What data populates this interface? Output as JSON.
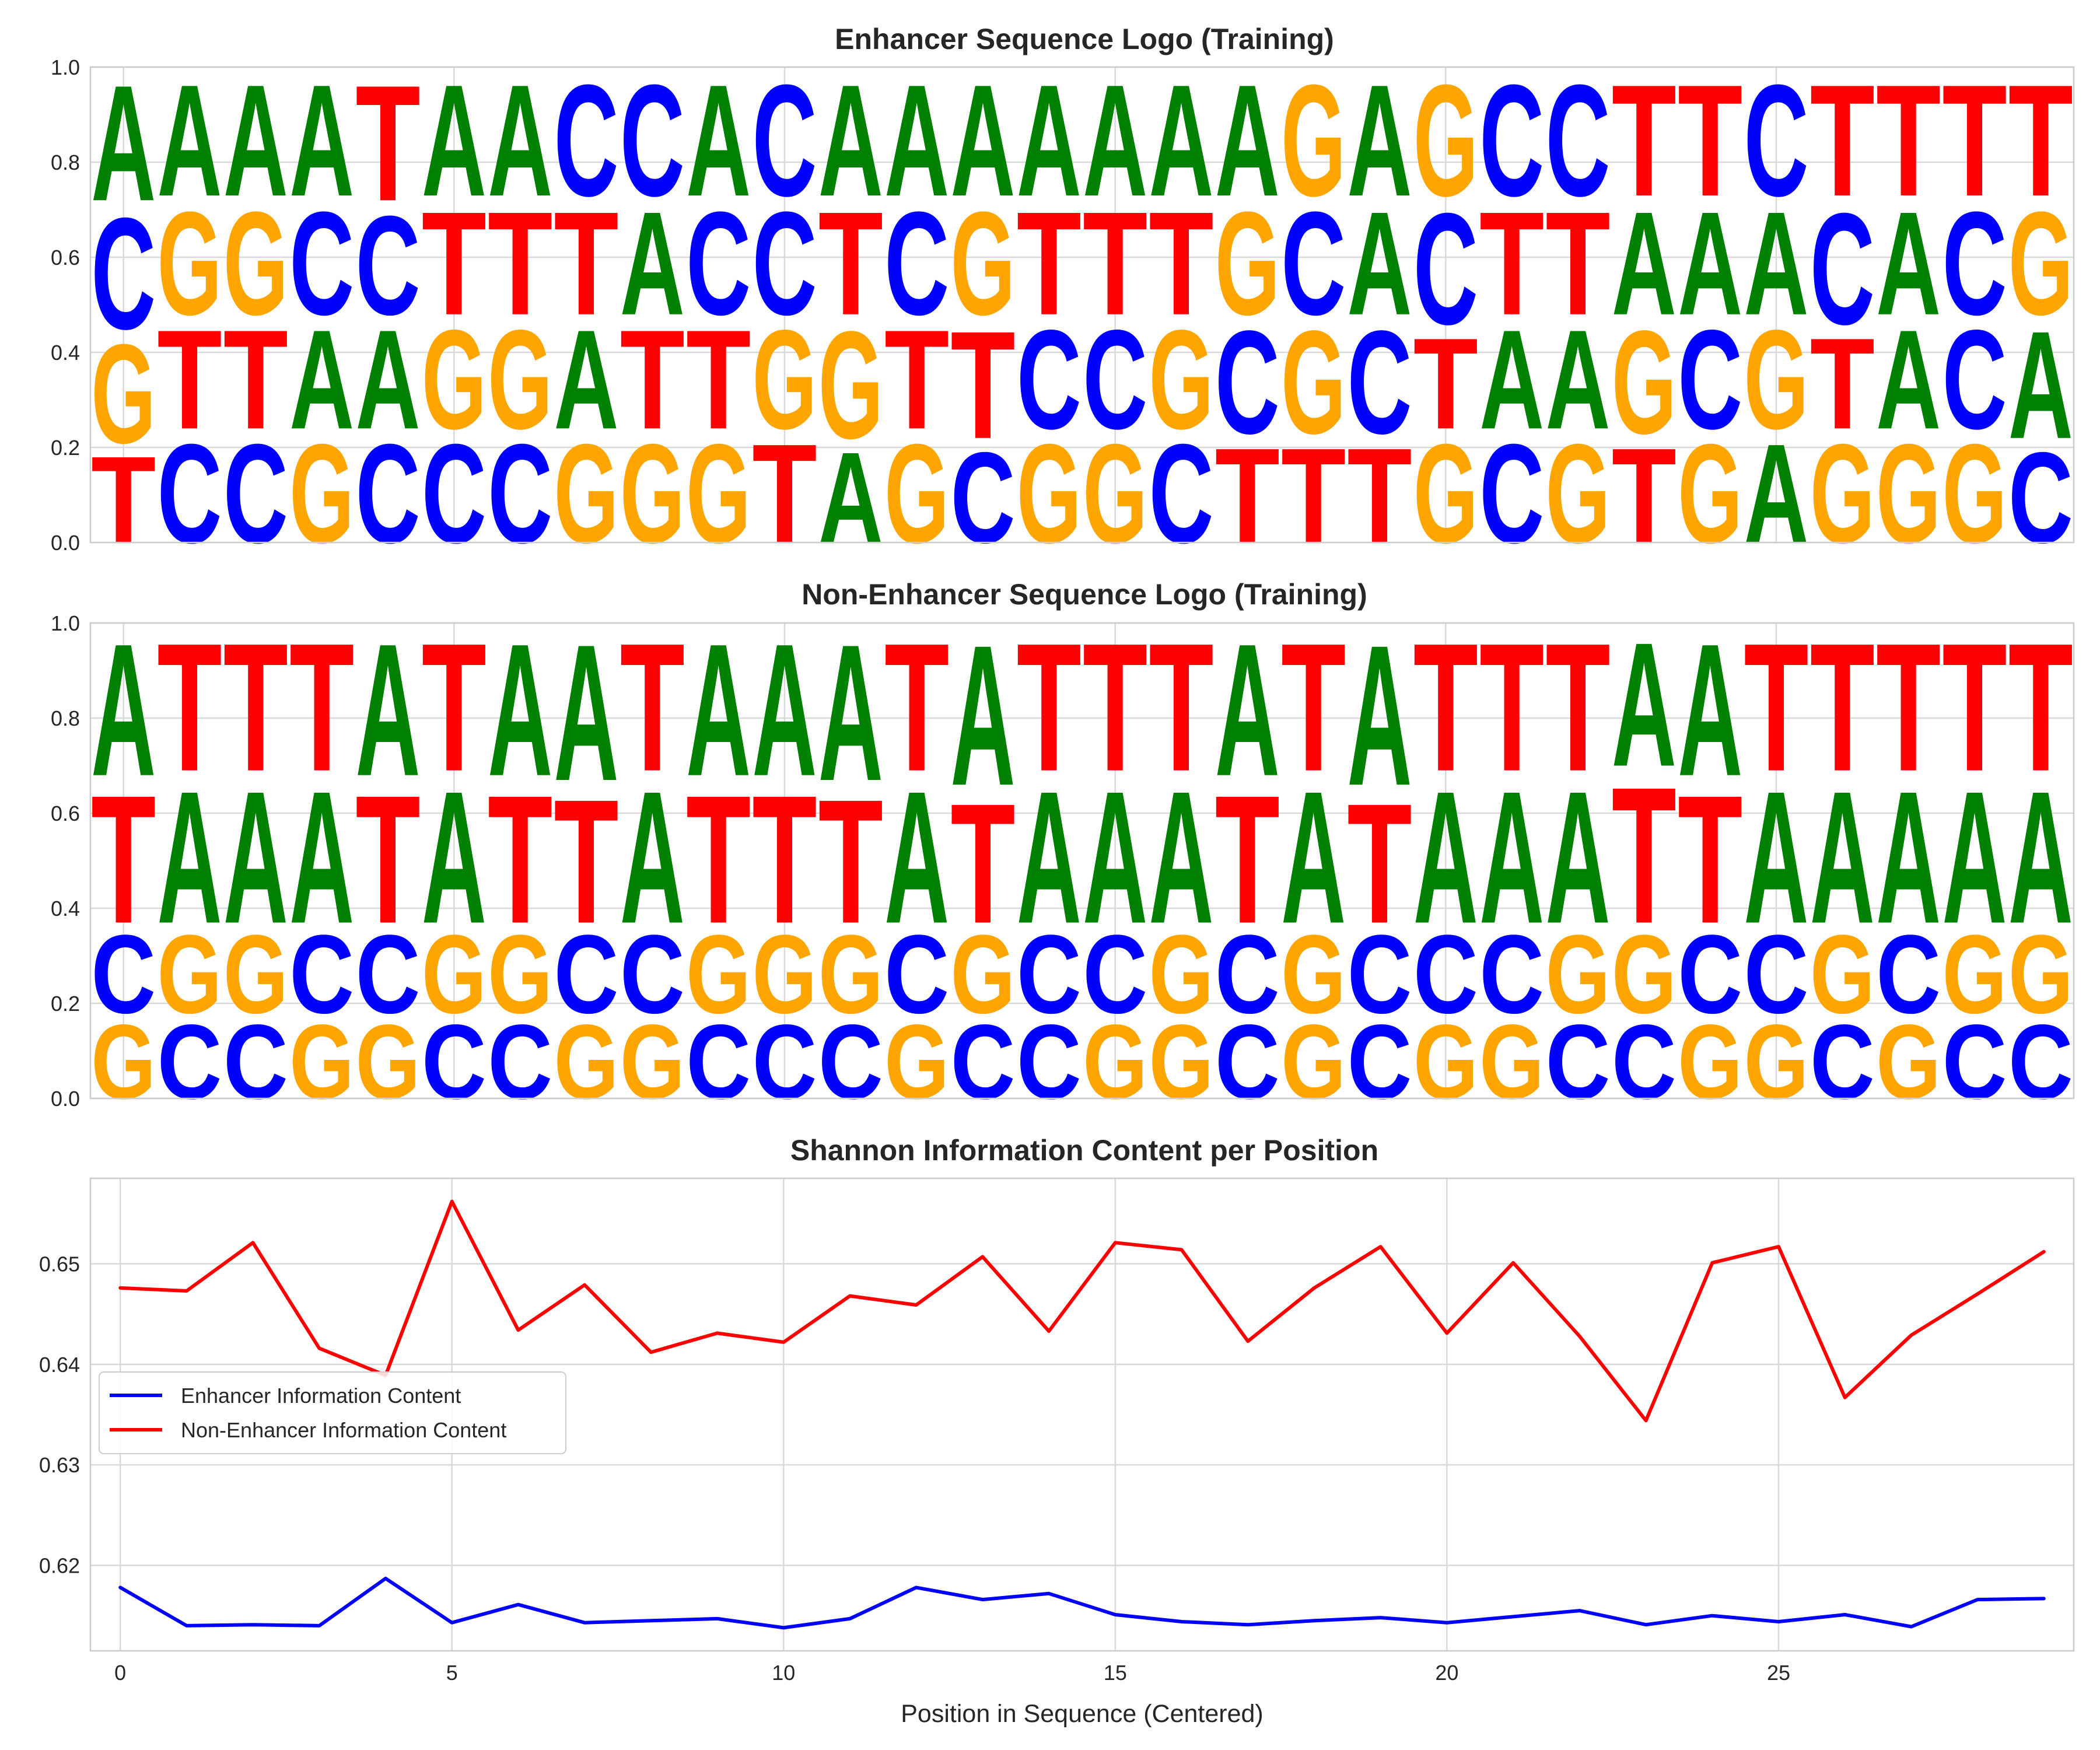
{
  "colors": {
    "A": "#008000",
    "C": "#0000ff",
    "G": "#ffa500",
    "T": "#ff0000",
    "enhancer_line": "#0000ff",
    "non_enhancer_line": "#ff0000"
  },
  "chart_data": [
    {
      "type": "sequence-logo",
      "title": "Enhancer Sequence Logo (Training)",
      "ylim": [
        0,
        1
      ],
      "yticks": [
        "0.0",
        "0.2",
        "0.4",
        "0.6",
        "0.8",
        "1.0"
      ],
      "positions": 30,
      "stacks": [
        [
          [
            "T",
            0.21
          ],
          [
            "G",
            0.24
          ],
          [
            "C",
            0.27
          ],
          [
            "A",
            0.28
          ]
        ],
        [
          [
            "C",
            0.24
          ],
          [
            "T",
            0.24
          ],
          [
            "G",
            0.25
          ],
          [
            "A",
            0.27
          ]
        ],
        [
          [
            "C",
            0.24
          ],
          [
            "T",
            0.24
          ],
          [
            "G",
            0.25
          ],
          [
            "A",
            0.27
          ]
        ],
        [
          [
            "G",
            0.24
          ],
          [
            "A",
            0.24
          ],
          [
            "C",
            0.25
          ],
          [
            "A",
            0.27
          ]
        ],
        [
          [
            "C",
            0.24
          ],
          [
            "A",
            0.24
          ],
          [
            "C",
            0.24
          ],
          [
            "T",
            0.28
          ]
        ],
        [
          [
            "C",
            0.24
          ],
          [
            "G",
            0.24
          ],
          [
            "T",
            0.25
          ],
          [
            "A",
            0.27
          ]
        ],
        [
          [
            "C",
            0.24
          ],
          [
            "G",
            0.24
          ],
          [
            "T",
            0.25
          ],
          [
            "A",
            0.27
          ]
        ],
        [
          [
            "G",
            0.24
          ],
          [
            "A",
            0.24
          ],
          [
            "T",
            0.25
          ],
          [
            "C",
            0.27
          ]
        ],
        [
          [
            "G",
            0.24
          ],
          [
            "T",
            0.24
          ],
          [
            "A",
            0.25
          ],
          [
            "C",
            0.27
          ]
        ],
        [
          [
            "G",
            0.24
          ],
          [
            "T",
            0.24
          ],
          [
            "C",
            0.25
          ],
          [
            "A",
            0.27
          ]
        ],
        [
          [
            "T",
            0.24
          ],
          [
            "G",
            0.24
          ],
          [
            "C",
            0.25
          ],
          [
            "C",
            0.27
          ]
        ],
        [
          [
            "A",
            0.22
          ],
          [
            "G",
            0.26
          ],
          [
            "T",
            0.25
          ],
          [
            "A",
            0.27
          ]
        ],
        [
          [
            "G",
            0.24
          ],
          [
            "T",
            0.24
          ],
          [
            "C",
            0.25
          ],
          [
            "A",
            0.27
          ]
        ],
        [
          [
            "C",
            0.22
          ],
          [
            "T",
            0.26
          ],
          [
            "G",
            0.25
          ],
          [
            "A",
            0.27
          ]
        ],
        [
          [
            "G",
            0.24
          ],
          [
            "C",
            0.24
          ],
          [
            "T",
            0.25
          ],
          [
            "A",
            0.27
          ]
        ],
        [
          [
            "G",
            0.24
          ],
          [
            "C",
            0.24
          ],
          [
            "T",
            0.25
          ],
          [
            "A",
            0.27
          ]
        ],
        [
          [
            "C",
            0.24
          ],
          [
            "G",
            0.24
          ],
          [
            "T",
            0.25
          ],
          [
            "A",
            0.27
          ]
        ],
        [
          [
            "T",
            0.23
          ],
          [
            "C",
            0.25
          ],
          [
            "G",
            0.25
          ],
          [
            "A",
            0.27
          ]
        ],
        [
          [
            "T",
            0.23
          ],
          [
            "G",
            0.25
          ],
          [
            "C",
            0.25
          ],
          [
            "G",
            0.27
          ]
        ],
        [
          [
            "T",
            0.23
          ],
          [
            "C",
            0.25
          ],
          [
            "A",
            0.25
          ],
          [
            "A",
            0.27
          ]
        ],
        [
          [
            "G",
            0.24
          ],
          [
            "T",
            0.22
          ],
          [
            "C",
            0.27
          ],
          [
            "G",
            0.27
          ]
        ],
        [
          [
            "C",
            0.24
          ],
          [
            "A",
            0.24
          ],
          [
            "T",
            0.25
          ],
          [
            "C",
            0.27
          ]
        ],
        [
          [
            "G",
            0.24
          ],
          [
            "A",
            0.24
          ],
          [
            "T",
            0.25
          ],
          [
            "C",
            0.27
          ]
        ],
        [
          [
            "T",
            0.23
          ],
          [
            "G",
            0.25
          ],
          [
            "A",
            0.25
          ],
          [
            "T",
            0.27
          ]
        ],
        [
          [
            "G",
            0.24
          ],
          [
            "C",
            0.24
          ],
          [
            "A",
            0.25
          ],
          [
            "T",
            0.27
          ]
        ],
        [
          [
            "A",
            0.24
          ],
          [
            "G",
            0.24
          ],
          [
            "A",
            0.25
          ],
          [
            "C",
            0.27
          ]
        ],
        [
          [
            "G",
            0.24
          ],
          [
            "T",
            0.22
          ],
          [
            "C",
            0.27
          ],
          [
            "T",
            0.27
          ]
        ],
        [
          [
            "G",
            0.24
          ],
          [
            "A",
            0.24
          ],
          [
            "A",
            0.25
          ],
          [
            "T",
            0.27
          ]
        ],
        [
          [
            "G",
            0.24
          ],
          [
            "C",
            0.24
          ],
          [
            "C",
            0.25
          ],
          [
            "T",
            0.27
          ]
        ],
        [
          [
            "C",
            0.22
          ],
          [
            "A",
            0.26
          ],
          [
            "G",
            0.25
          ],
          [
            "T",
            0.27
          ]
        ]
      ]
    },
    {
      "type": "sequence-logo",
      "title": "Non-Enhancer Sequence Logo (Training)",
      "ylim": [
        0,
        1
      ],
      "yticks": [
        "0.0",
        "0.2",
        "0.4",
        "0.6",
        "0.8",
        "1.0"
      ],
      "positions": 30,
      "stacks": [
        [
          [
            "G",
            0.18
          ],
          [
            "C",
            0.19
          ],
          [
            "T",
            0.31
          ],
          [
            "A",
            0.32
          ]
        ],
        [
          [
            "C",
            0.18
          ],
          [
            "G",
            0.19
          ],
          [
            "A",
            0.32
          ],
          [
            "T",
            0.31
          ]
        ],
        [
          [
            "C",
            0.18
          ],
          [
            "G",
            0.19
          ],
          [
            "A",
            0.32
          ],
          [
            "T",
            0.31
          ]
        ],
        [
          [
            "G",
            0.18
          ],
          [
            "C",
            0.19
          ],
          [
            "A",
            0.32
          ],
          [
            "T",
            0.31
          ]
        ],
        [
          [
            "G",
            0.18
          ],
          [
            "C",
            0.19
          ],
          [
            "T",
            0.31
          ],
          [
            "A",
            0.32
          ]
        ],
        [
          [
            "C",
            0.18
          ],
          [
            "G",
            0.19
          ],
          [
            "A",
            0.32
          ],
          [
            "T",
            0.31
          ]
        ],
        [
          [
            "C",
            0.18
          ],
          [
            "G",
            0.19
          ],
          [
            "T",
            0.31
          ],
          [
            "A",
            0.32
          ]
        ],
        [
          [
            "G",
            0.18
          ],
          [
            "C",
            0.19
          ],
          [
            "T",
            0.3
          ],
          [
            "A",
            0.33
          ]
        ],
        [
          [
            "G",
            0.18
          ],
          [
            "C",
            0.19
          ],
          [
            "A",
            0.32
          ],
          [
            "T",
            0.31
          ]
        ],
        [
          [
            "C",
            0.18
          ],
          [
            "G",
            0.19
          ],
          [
            "T",
            0.31
          ],
          [
            "A",
            0.32
          ]
        ],
        [
          [
            "C",
            0.18
          ],
          [
            "G",
            0.19
          ],
          [
            "T",
            0.31
          ],
          [
            "A",
            0.32
          ]
        ],
        [
          [
            "C",
            0.18
          ],
          [
            "G",
            0.19
          ],
          [
            "T",
            0.3
          ],
          [
            "A",
            0.33
          ]
        ],
        [
          [
            "G",
            0.18
          ],
          [
            "C",
            0.19
          ],
          [
            "A",
            0.32
          ],
          [
            "T",
            0.31
          ]
        ],
        [
          [
            "C",
            0.18
          ],
          [
            "G",
            0.19
          ],
          [
            "T",
            0.29
          ],
          [
            "A",
            0.34
          ]
        ],
        [
          [
            "C",
            0.18
          ],
          [
            "C",
            0.19
          ],
          [
            "A",
            0.32
          ],
          [
            "T",
            0.31
          ]
        ],
        [
          [
            "G",
            0.18
          ],
          [
            "C",
            0.19
          ],
          [
            "A",
            0.32
          ],
          [
            "T",
            0.31
          ]
        ],
        [
          [
            "G",
            0.18
          ],
          [
            "G",
            0.19
          ],
          [
            "A",
            0.32
          ],
          [
            "T",
            0.31
          ]
        ],
        [
          [
            "C",
            0.18
          ],
          [
            "C",
            0.19
          ],
          [
            "T",
            0.31
          ],
          [
            "A",
            0.32
          ]
        ],
        [
          [
            "G",
            0.18
          ],
          [
            "G",
            0.19
          ],
          [
            "A",
            0.32
          ],
          [
            "T",
            0.31
          ]
        ],
        [
          [
            "C",
            0.18
          ],
          [
            "C",
            0.19
          ],
          [
            "T",
            0.29
          ],
          [
            "A",
            0.34
          ]
        ],
        [
          [
            "G",
            0.18
          ],
          [
            "C",
            0.19
          ],
          [
            "A",
            0.32
          ],
          [
            "T",
            0.31
          ]
        ],
        [
          [
            "G",
            0.18
          ],
          [
            "C",
            0.19
          ],
          [
            "A",
            0.32
          ],
          [
            "T",
            0.31
          ]
        ],
        [
          [
            "C",
            0.18
          ],
          [
            "G",
            0.19
          ],
          [
            "A",
            0.32
          ],
          [
            "T",
            0.31
          ]
        ],
        [
          [
            "C",
            0.18
          ],
          [
            "G",
            0.19
          ],
          [
            "T",
            0.33
          ],
          [
            "A",
            0.3
          ]
        ],
        [
          [
            "G",
            0.18
          ],
          [
            "C",
            0.19
          ],
          [
            "T",
            0.31
          ],
          [
            "A",
            0.32
          ]
        ],
        [
          [
            "G",
            0.18
          ],
          [
            "C",
            0.19
          ],
          [
            "A",
            0.32
          ],
          [
            "T",
            0.31
          ]
        ],
        [
          [
            "C",
            0.18
          ],
          [
            "G",
            0.19
          ],
          [
            "A",
            0.32
          ],
          [
            "T",
            0.31
          ]
        ],
        [
          [
            "G",
            0.18
          ],
          [
            "C",
            0.19
          ],
          [
            "A",
            0.32
          ],
          [
            "T",
            0.31
          ]
        ],
        [
          [
            "C",
            0.18
          ],
          [
            "G",
            0.19
          ],
          [
            "A",
            0.32
          ],
          [
            "T",
            0.31
          ]
        ],
        [
          [
            "C",
            0.18
          ],
          [
            "G",
            0.19
          ],
          [
            "A",
            0.32
          ],
          [
            "T",
            0.31
          ]
        ]
      ]
    },
    {
      "type": "line",
      "title": "Shannon Information Content per Position",
      "xlabel": "Position in Sequence (Centered)",
      "ylabel": "",
      "xlim": [
        -0.45,
        29.45
      ],
      "ylim": [
        0.6115,
        0.6585
      ],
      "xticks": [
        0,
        5,
        10,
        15,
        20,
        25
      ],
      "yticks": [
        0.62,
        0.63,
        0.64,
        0.65
      ],
      "ytick_labels": [
        "0.62",
        "0.63",
        "0.64",
        "0.65"
      ],
      "legend_position": "center-left",
      "x": [
        0,
        1,
        2,
        3,
        4,
        5,
        6,
        7,
        8,
        9,
        10,
        11,
        12,
        13,
        14,
        15,
        16,
        17,
        18,
        19,
        20,
        21,
        22,
        23,
        24,
        25,
        26,
        27,
        28,
        29
      ],
      "series": [
        {
          "name": "Enhancer Information Content",
          "values": [
            0.6178,
            0.614,
            0.6141,
            0.614,
            0.6187,
            0.6143,
            0.6161,
            0.6143,
            0.6145,
            0.6147,
            0.6138,
            0.6147,
            0.6178,
            0.6166,
            0.6172,
            0.6151,
            0.6144,
            0.6141,
            0.6145,
            0.6148,
            0.6143,
            0.6149,
            0.6155,
            0.6141,
            0.615,
            0.6144,
            0.6151,
            0.6139,
            0.6166,
            0.6167
          ]
        },
        {
          "name": "Non-Enhancer Information Content",
          "values": [
            0.6476,
            0.6473,
            0.6521,
            0.6416,
            0.6389,
            0.6562,
            0.6434,
            0.6479,
            0.6412,
            0.6431,
            0.6422,
            0.6468,
            0.6459,
            0.6507,
            0.6433,
            0.6521,
            0.6514,
            0.6423,
            0.6476,
            0.6517,
            0.6431,
            0.6501,
            0.6428,
            0.6344,
            0.6501,
            0.6517,
            0.6367,
            0.6429,
            0.647,
            0.6512
          ]
        }
      ]
    }
  ]
}
